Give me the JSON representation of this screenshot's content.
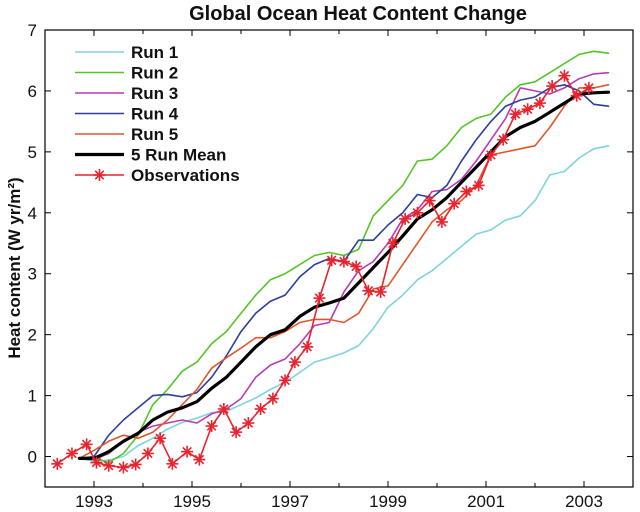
{
  "chart_data": {
    "type": "line",
    "title": "Global Ocean Heat Content Change",
    "xlabel": "",
    "ylabel": "Heat content (W yr/m²)",
    "xlim": [
      1992.0,
      2004.0
    ],
    "ylim": [
      -0.5,
      7
    ],
    "x_ticks": [
      1993,
      1995,
      1997,
      1999,
      2001,
      2003
    ],
    "y_ticks": [
      0,
      1,
      2,
      3,
      4,
      5,
      6,
      7
    ],
    "grid": false,
    "legend_position": "top-left",
    "series": [
      {
        "name": "Run 1",
        "color": "#7fd3e0",
        "width": 1.6,
        "marker": "none",
        "points": [
          [
            1992.7,
            -0.03
          ],
          [
            1993.0,
            -0.08
          ],
          [
            1993.3,
            -0.06
          ],
          [
            1993.6,
            0.0
          ],
          [
            1993.9,
            0.18
          ],
          [
            1994.2,
            0.3
          ],
          [
            1994.5,
            0.45
          ],
          [
            1994.8,
            0.56
          ],
          [
            1995.1,
            0.63
          ],
          [
            1995.4,
            0.72
          ],
          [
            1995.7,
            0.74
          ],
          [
            1996.0,
            0.85
          ],
          [
            1996.3,
            0.96
          ],
          [
            1996.6,
            1.1
          ],
          [
            1996.9,
            1.22
          ],
          [
            1997.2,
            1.38
          ],
          [
            1997.5,
            1.55
          ],
          [
            1997.8,
            1.62
          ],
          [
            1998.1,
            1.7
          ],
          [
            1998.4,
            1.82
          ],
          [
            1998.7,
            2.1
          ],
          [
            1999.0,
            2.45
          ],
          [
            1999.3,
            2.65
          ],
          [
            1999.6,
            2.9
          ],
          [
            1999.9,
            3.05
          ],
          [
            2000.2,
            3.25
          ],
          [
            2000.5,
            3.45
          ],
          [
            2000.8,
            3.65
          ],
          [
            2001.1,
            3.72
          ],
          [
            2001.4,
            3.88
          ],
          [
            2001.7,
            3.95
          ],
          [
            2002.0,
            4.2
          ],
          [
            2002.3,
            4.62
          ],
          [
            2002.6,
            4.68
          ],
          [
            2002.9,
            4.9
          ],
          [
            2003.2,
            5.05
          ],
          [
            2003.5,
            5.1
          ]
        ]
      },
      {
        "name": "Run 2",
        "color": "#55c428",
        "width": 1.6,
        "marker": "none",
        "points": [
          [
            1992.7,
            -0.03
          ],
          [
            1993.0,
            -0.02
          ],
          [
            1993.3,
            -0.1
          ],
          [
            1993.6,
            0.05
          ],
          [
            1993.9,
            0.35
          ],
          [
            1994.2,
            0.85
          ],
          [
            1994.5,
            1.1
          ],
          [
            1994.8,
            1.4
          ],
          [
            1995.1,
            1.55
          ],
          [
            1995.4,
            1.85
          ],
          [
            1995.7,
            2.05
          ],
          [
            1996.0,
            2.35
          ],
          [
            1996.3,
            2.65
          ],
          [
            1996.6,
            2.9
          ],
          [
            1996.9,
            3.0
          ],
          [
            1997.2,
            3.15
          ],
          [
            1997.5,
            3.3
          ],
          [
            1997.8,
            3.35
          ],
          [
            1998.1,
            3.3
          ],
          [
            1998.4,
            3.4
          ],
          [
            1998.7,
            3.95
          ],
          [
            1999.0,
            4.2
          ],
          [
            1999.3,
            4.45
          ],
          [
            1999.6,
            4.85
          ],
          [
            1999.9,
            4.88
          ],
          [
            2000.2,
            5.1
          ],
          [
            2000.5,
            5.4
          ],
          [
            2000.8,
            5.55
          ],
          [
            2001.1,
            5.62
          ],
          [
            2001.4,
            5.9
          ],
          [
            2001.7,
            6.1
          ],
          [
            2002.0,
            6.15
          ],
          [
            2002.3,
            6.3
          ],
          [
            2002.6,
            6.45
          ],
          [
            2002.9,
            6.6
          ],
          [
            2003.2,
            6.65
          ],
          [
            2003.5,
            6.62
          ]
        ]
      },
      {
        "name": "Run 3",
        "color": "#b83cb5",
        "width": 1.6,
        "marker": "none",
        "points": [
          [
            1992.7,
            -0.03
          ],
          [
            1993.0,
            -0.05
          ],
          [
            1993.3,
            0.05
          ],
          [
            1993.6,
            0.25
          ],
          [
            1993.9,
            0.4
          ],
          [
            1994.2,
            0.5
          ],
          [
            1994.5,
            0.55
          ],
          [
            1994.8,
            0.6
          ],
          [
            1995.1,
            0.55
          ],
          [
            1995.4,
            0.7
          ],
          [
            1995.7,
            0.78
          ],
          [
            1996.0,
            0.95
          ],
          [
            1996.3,
            1.3
          ],
          [
            1996.6,
            1.5
          ],
          [
            1996.9,
            1.6
          ],
          [
            1997.2,
            1.85
          ],
          [
            1997.5,
            2.15
          ],
          [
            1997.8,
            2.2
          ],
          [
            1998.1,
            2.7
          ],
          [
            1998.4,
            3.05
          ],
          [
            1998.7,
            3.2
          ],
          [
            1999.0,
            3.5
          ],
          [
            1999.3,
            3.9
          ],
          [
            1999.6,
            4.05
          ],
          [
            1999.9,
            4.35
          ],
          [
            2000.2,
            4.38
          ],
          [
            2000.5,
            4.55
          ],
          [
            2000.8,
            4.85
          ],
          [
            2001.1,
            5.2
          ],
          [
            2001.4,
            5.55
          ],
          [
            2001.7,
            6.05
          ],
          [
            2002.0,
            6.0
          ],
          [
            2002.3,
            5.95
          ],
          [
            2002.6,
            6.05
          ],
          [
            2002.9,
            6.2
          ],
          [
            2003.2,
            6.28
          ],
          [
            2003.5,
            6.3
          ]
        ]
      },
      {
        "name": "Run 4",
        "color": "#2b3f9e",
        "width": 1.6,
        "marker": "none",
        "points": [
          [
            1992.7,
            -0.03
          ],
          [
            1993.0,
            0.0
          ],
          [
            1993.3,
            0.35
          ],
          [
            1993.6,
            0.6
          ],
          [
            1993.9,
            0.8
          ],
          [
            1994.2,
            1.0
          ],
          [
            1994.5,
            1.02
          ],
          [
            1994.8,
            0.98
          ],
          [
            1995.1,
            1.05
          ],
          [
            1995.4,
            1.3
          ],
          [
            1995.7,
            1.65
          ],
          [
            1996.0,
            2.05
          ],
          [
            1996.3,
            2.35
          ],
          [
            1996.6,
            2.55
          ],
          [
            1996.9,
            2.65
          ],
          [
            1997.2,
            2.95
          ],
          [
            1997.5,
            3.15
          ],
          [
            1997.8,
            3.25
          ],
          [
            1998.1,
            3.2
          ],
          [
            1998.4,
            3.55
          ],
          [
            1998.7,
            3.55
          ],
          [
            1999.0,
            3.8
          ],
          [
            1999.3,
            4.0
          ],
          [
            1999.6,
            4.3
          ],
          [
            1999.9,
            4.25
          ],
          [
            2000.2,
            4.45
          ],
          [
            2000.5,
            4.85
          ],
          [
            2000.8,
            5.2
          ],
          [
            2001.1,
            5.5
          ],
          [
            2001.4,
            5.75
          ],
          [
            2001.7,
            5.85
          ],
          [
            2002.0,
            5.9
          ],
          [
            2002.3,
            6.05
          ],
          [
            2002.6,
            6.1
          ],
          [
            2002.9,
            6.0
          ],
          [
            2003.2,
            5.78
          ],
          [
            2003.5,
            5.75
          ]
        ]
      },
      {
        "name": "Run 5",
        "color": "#e2562a",
        "width": 1.6,
        "marker": "none",
        "points": [
          [
            1992.7,
            -0.03
          ],
          [
            1993.0,
            0.1
          ],
          [
            1993.3,
            0.25
          ],
          [
            1993.6,
            0.35
          ],
          [
            1993.9,
            0.3
          ],
          [
            1994.2,
            0.4
          ],
          [
            1994.5,
            0.6
          ],
          [
            1994.8,
            0.85
          ],
          [
            1995.1,
            1.1
          ],
          [
            1995.4,
            1.45
          ],
          [
            1995.7,
            1.62
          ],
          [
            1996.0,
            1.78
          ],
          [
            1996.3,
            1.95
          ],
          [
            1996.6,
            1.95
          ],
          [
            1996.9,
            2.05
          ],
          [
            1997.2,
            2.2
          ],
          [
            1997.5,
            2.25
          ],
          [
            1997.8,
            2.25
          ],
          [
            1998.1,
            2.2
          ],
          [
            1998.4,
            2.35
          ],
          [
            1998.7,
            2.75
          ],
          [
            1999.0,
            2.8
          ],
          [
            1999.3,
            3.15
          ],
          [
            1999.6,
            3.5
          ],
          [
            1999.9,
            3.85
          ],
          [
            2000.2,
            4.05
          ],
          [
            2000.5,
            4.2
          ],
          [
            2000.8,
            4.45
          ],
          [
            2001.1,
            4.95
          ],
          [
            2001.4,
            5.0
          ],
          [
            2001.7,
            5.05
          ],
          [
            2002.0,
            5.1
          ],
          [
            2002.3,
            5.4
          ],
          [
            2002.6,
            5.75
          ],
          [
            2002.9,
            6.05
          ],
          [
            2003.2,
            6.05
          ],
          [
            2003.5,
            6.1
          ]
        ]
      },
      {
        "name": "5 Run Mean",
        "color": "#000000",
        "width": 3.2,
        "marker": "none",
        "points": [
          [
            1992.7,
            -0.03
          ],
          [
            1993.0,
            -0.03
          ],
          [
            1993.3,
            0.08
          ],
          [
            1993.6,
            0.25
          ],
          [
            1993.9,
            0.38
          ],
          [
            1994.2,
            0.6
          ],
          [
            1994.5,
            0.73
          ],
          [
            1994.8,
            0.8
          ],
          [
            1995.1,
            0.9
          ],
          [
            1995.4,
            1.12
          ],
          [
            1995.7,
            1.3
          ],
          [
            1996.0,
            1.55
          ],
          [
            1996.3,
            1.8
          ],
          [
            1996.6,
            2.0
          ],
          [
            1996.9,
            2.08
          ],
          [
            1997.2,
            2.3
          ],
          [
            1997.5,
            2.45
          ],
          [
            1997.8,
            2.52
          ],
          [
            1998.1,
            2.6
          ],
          [
            1998.4,
            2.85
          ],
          [
            1998.7,
            3.1
          ],
          [
            1999.0,
            3.35
          ],
          [
            1999.3,
            3.62
          ],
          [
            1999.6,
            3.9
          ],
          [
            1999.9,
            4.05
          ],
          [
            2000.2,
            4.25
          ],
          [
            2000.5,
            4.5
          ],
          [
            2000.8,
            4.75
          ],
          [
            2001.1,
            5.0
          ],
          [
            2001.4,
            5.25
          ],
          [
            2001.7,
            5.4
          ],
          [
            2002.0,
            5.5
          ],
          [
            2002.3,
            5.65
          ],
          [
            2002.6,
            5.8
          ],
          [
            2002.9,
            5.95
          ],
          [
            2003.2,
            5.97
          ],
          [
            2003.5,
            5.98
          ]
        ]
      },
      {
        "name": "Observations",
        "color": "#e8242f",
        "width": 1.6,
        "marker": "asterisk",
        "points": [
          [
            1992.25,
            -0.12
          ],
          [
            1992.55,
            0.05
          ],
          [
            1992.85,
            0.2
          ],
          [
            1993.05,
            -0.1
          ],
          [
            1993.3,
            -0.15
          ],
          [
            1993.6,
            -0.18
          ],
          [
            1993.85,
            -0.13
          ],
          [
            1994.1,
            0.05
          ],
          [
            1994.35,
            0.3
          ],
          [
            1994.6,
            -0.12
          ],
          [
            1994.9,
            0.08
          ],
          [
            1995.15,
            -0.05
          ],
          [
            1995.4,
            0.5
          ],
          [
            1995.65,
            0.78
          ],
          [
            1995.9,
            0.4
          ],
          [
            1996.15,
            0.55
          ],
          [
            1996.4,
            0.78
          ],
          [
            1996.65,
            0.95
          ],
          [
            1996.9,
            1.25
          ],
          [
            1997.1,
            1.55
          ],
          [
            1997.35,
            1.8
          ],
          [
            1997.6,
            2.6
          ],
          [
            1997.85,
            3.22
          ],
          [
            1998.1,
            3.2
          ],
          [
            1998.35,
            3.12
          ],
          [
            1998.6,
            2.72
          ],
          [
            1998.85,
            2.7
          ],
          [
            1999.1,
            3.5
          ],
          [
            1999.35,
            3.9
          ],
          [
            1999.6,
            4.0
          ],
          [
            1999.85,
            4.2
          ],
          [
            2000.1,
            3.85
          ],
          [
            2000.35,
            4.15
          ],
          [
            2000.6,
            4.35
          ],
          [
            2000.85,
            4.45
          ],
          [
            2001.1,
            4.95
          ],
          [
            2001.35,
            5.2
          ],
          [
            2001.6,
            5.62
          ],
          [
            2001.85,
            5.7
          ],
          [
            2002.1,
            5.8
          ],
          [
            2002.35,
            6.08
          ],
          [
            2002.6,
            6.25
          ],
          [
            2002.85,
            5.92
          ],
          [
            2003.1,
            6.05
          ]
        ]
      }
    ]
  }
}
